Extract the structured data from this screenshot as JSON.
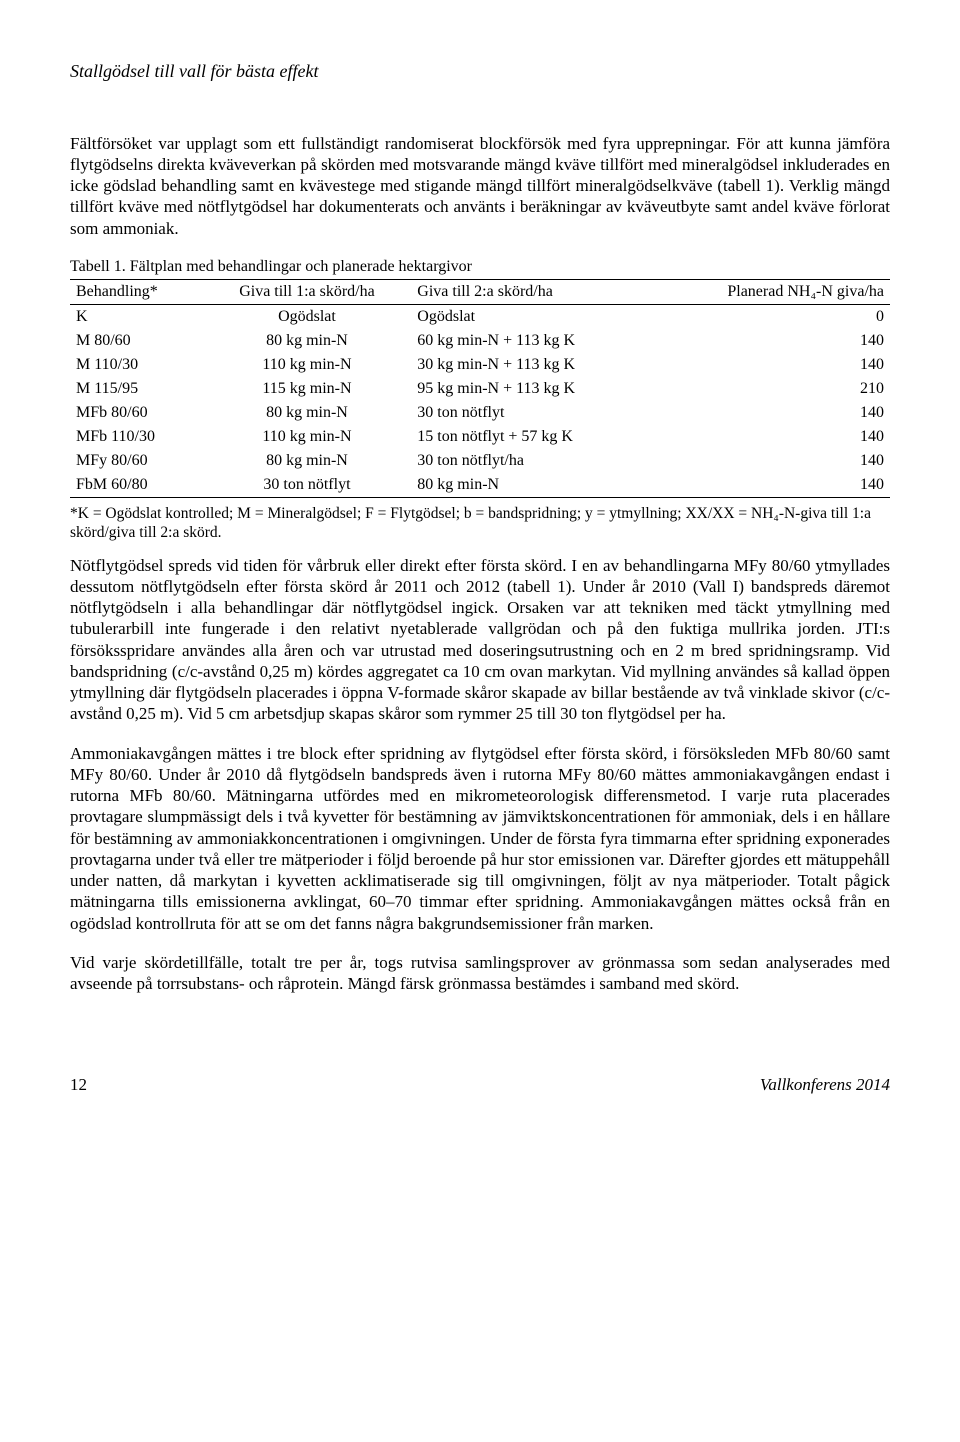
{
  "doc": {
    "runningTitle": "Stallgödsel till vall för bästa effekt",
    "para1": "Fältförsöket var upplagt som ett fullständigt randomiserat blockförsök med fyra upprepningar. För att kunna jämföra flytgödselns direkta kväveverkan på skörden med motsvarande mängd kväve tillfört med mineralgödsel inkluderades en icke gödslad behandling samt en kvävestege med stigande mängd tillfört mineralgödselkväve (tabell 1). Verklig mängd tillfört kväve med nötflytgödsel har dokumenterats och använts i beräkningar av kväveutbyte samt andel kväve förlorat som ammoniak.",
    "tableCaption": "Tabell 1. Fältplan med behandlingar och planerade hektargivor",
    "table": {
      "columns": [
        "Behandling*",
        "Giva till 1:a skörd/ha",
        "Giva till 2:a skörd/ha",
        "Planerad NH₄-N giva/ha"
      ],
      "rows": [
        [
          "K",
          "Ogödslat",
          "Ogödslat",
          "0"
        ],
        [
          "M 80/60",
          "80 kg min-N",
          "60 kg min-N + 113 kg K",
          "140"
        ],
        [
          "M 110/30",
          "110 kg min-N",
          "30 kg min-N + 113 kg K",
          "140"
        ],
        [
          "M 115/95",
          "115 kg min-N",
          "95 kg min-N + 113 kg K",
          "210"
        ],
        [
          "MFb 80/60",
          "80 kg min-N",
          "30 ton nötflyt",
          "140"
        ],
        [
          "MFb 110/30",
          "110 kg min-N",
          "15 ton nötflyt + 57 kg K",
          "140"
        ],
        [
          "MFy 80/60",
          "80 kg min-N",
          "30 ton nötflyt/ha",
          "140"
        ],
        [
          "FbM 60/80",
          "30 ton nötflyt",
          "80 kg min-N",
          "140"
        ]
      ]
    },
    "tableFootnote": "*K = Ogödslat kontrolled; M = Mineralgödsel; F = Flytgödsel; b = bandspridning; y = ytmyllning; XX/XX = NH₄-N-giva till 1:a skörd/giva till 2:a skörd.",
    "para2": "Nötflytgödsel spreds vid tiden för vårbruk eller direkt efter första skörd. I en av behandlingarna MFy 80/60 ytmyllades dessutom nötflytgödseln efter första skörd år 2011 och 2012 (tabell 1). Under år 2010 (Vall I) bandspreds däremot nötflytgödseln i alla behandlingar där nötflytgödsel ingick. Orsaken var att tekniken med täckt ytmyllning med tubulerarbill inte fungerade i den relativt nyetablerade vallgrödan och på den fuktiga mullrika jorden. JTI:s försöksspridare användes alla åren och var utrustad med doseringsutrustning och en 2 m bred spridningsramp. Vid bandspridning (c/c-avstånd 0,25 m) kördes aggregatet ca 10 cm ovan markytan. Vid myllning användes så kallad öppen ytmyllning där flytgödseln placerades i öppna V-formade skåror skapade av billar bestående av två vinklade skivor (c/c-avstånd 0,25 m). Vid 5 cm arbetsdjup skapas skåror som rymmer 25 till 30 ton flytgödsel per ha.",
    "para3": "Ammoniakavgången mättes i tre block efter spridning av flytgödsel efter första skörd, i försöksleden MFb 80/60 samt MFy 80/60. Under år 2010 då flytgödseln bandspreds även i rutorna MFy 80/60 mättes ammoniakavgången endast i rutorna MFb 80/60. Mätningarna utfördes med en mikrometeorologisk differensmetod. I varje ruta placerades provtagare slumpmässigt dels i två kyvetter för bestämning av jämviktskoncentrationen för ammoniak, dels i en hållare för bestämning av ammoniakkoncentrationen i omgivningen. Under de första fyra timmarna efter spridning exponerades provtagarna under två eller tre mätperioder i följd beroende på hur stor emissionen var. Därefter gjordes ett mätuppehåll under natten, då markytan i kyvetten acklimatiserade sig till omgivningen, följt av nya mätperioder. Totalt pågick mätningarna tills emissionerna avklingat, 60–70 timmar efter spridning. Ammoniakavgången mättes också från en ogödslad kontrollruta för att se om det fanns några bakgrundsemissioner från marken.",
    "para4": "Vid varje skördetillfälle, totalt tre per år, togs rutvisa samlingsprover av grönmassa som sedan analyserades med avseende på torrsubstans- och råprotein. Mängd färsk grönmassa bestämdes i samband med skörd.",
    "footer": {
      "pageNum": "12",
      "event": "Vallkonferens 2014"
    }
  }
}
